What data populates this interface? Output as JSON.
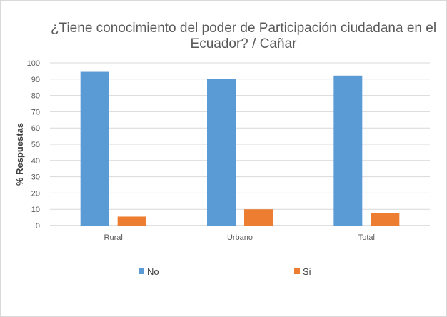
{
  "chart_data": {
    "type": "bar",
    "title_lines": [
      "¿Tiene conocimiento del poder de Participación ciudadana en el",
      "Ecuador?  / Cañar"
    ],
    "ylabel": "% Respuestas",
    "xlabel": "",
    "categories": [
      "Rural",
      "Urbano",
      "Total"
    ],
    "series": [
      {
        "name": "No",
        "color": "#5b9bd5",
        "values": [
          94.5,
          90,
          92.2
        ]
      },
      {
        "name": "Si",
        "color": "#ed7d31",
        "values": [
          5.5,
          10,
          7.8
        ]
      }
    ],
    "ylim": [
      0,
      100
    ],
    "yticks": [
      0,
      10,
      20,
      30,
      40,
      50,
      60,
      70,
      80,
      90,
      100
    ],
    "grid": true,
    "legend_position": "bottom"
  }
}
